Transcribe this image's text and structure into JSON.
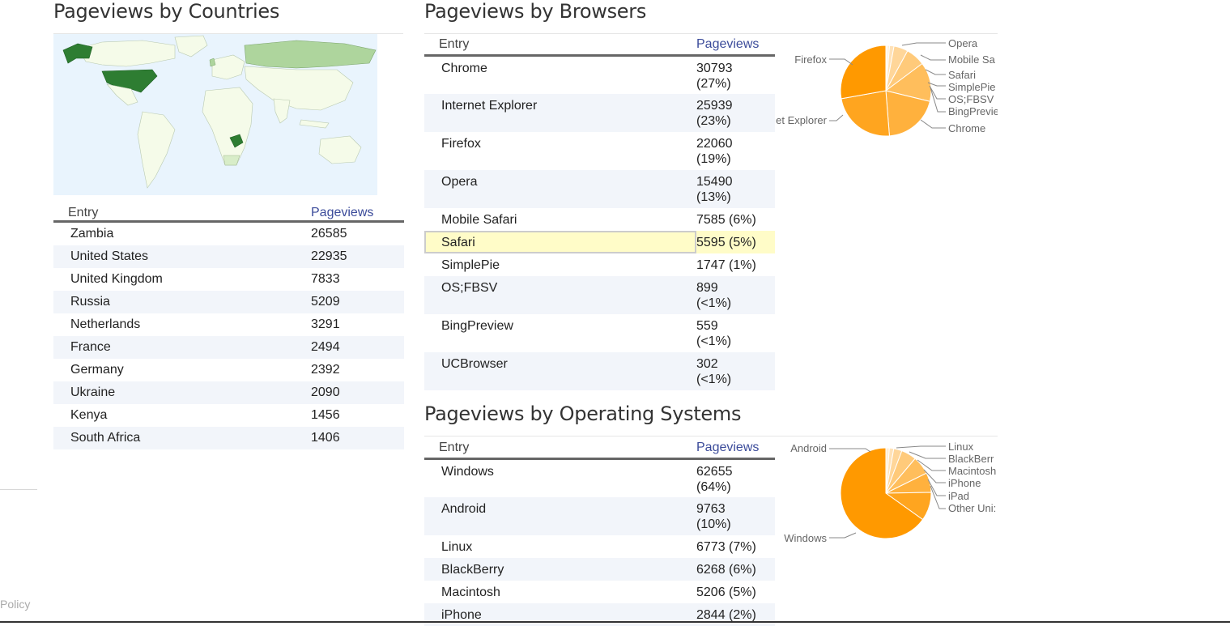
{
  "countries": {
    "title": "Pageviews by Countries",
    "col_entry": "Entry",
    "col_pageviews": "Pageviews",
    "rows": [
      {
        "entry": "Zambia",
        "pageviews": "26585"
      },
      {
        "entry": "United States",
        "pageviews": "22935"
      },
      {
        "entry": "United Kingdom",
        "pageviews": "7833"
      },
      {
        "entry": "Russia",
        "pageviews": "5209"
      },
      {
        "entry": "Netherlands",
        "pageviews": "3291"
      },
      {
        "entry": "France",
        "pageviews": "2494"
      },
      {
        "entry": "Germany",
        "pageviews": "2392"
      },
      {
        "entry": "Ukraine",
        "pageviews": "2090"
      },
      {
        "entry": "Kenya",
        "pageviews": "1456"
      },
      {
        "entry": "South Africa",
        "pageviews": "1406"
      }
    ],
    "map_colors": {
      "ocean": "#e9f4fd",
      "land": "#f5fbe9",
      "high": "#2e7d32",
      "mid": "#aed59d",
      "low": "#d8edc8"
    }
  },
  "browsers": {
    "title": "Pageviews by Browsers",
    "col_entry": "Entry",
    "col_pageviews": "Pageviews",
    "rows": [
      {
        "entry": "Chrome",
        "pv1": "30793",
        "pv2": "(27%)"
      },
      {
        "entry": "Internet Explorer",
        "pv1": "25939",
        "pv2": "(23%)"
      },
      {
        "entry": "Firefox",
        "pv1": "22060",
        "pv2": "(19%)"
      },
      {
        "entry": "Opera",
        "pv1": "15490",
        "pv2": "(13%)"
      },
      {
        "entry": "Mobile Safari",
        "pv1": "7585 (6%)",
        "pv2": ""
      },
      {
        "entry": "Safari",
        "pv1": "5595 (5%)",
        "pv2": "",
        "highlight": true
      },
      {
        "entry": "SimplePie",
        "pv1": "1747 (1%)",
        "pv2": ""
      },
      {
        "entry": "OS;FBSV",
        "pv1": "899",
        "pv2": "(<1%)"
      },
      {
        "entry": "BingPreview",
        "pv1": "559",
        "pv2": "(<1%)"
      },
      {
        "entry": "UCBrowser",
        "pv1": "302",
        "pv2": "(<1%)"
      }
    ]
  },
  "os": {
    "title": "Pageviews by Operating Systems",
    "col_entry": "Entry",
    "col_pageviews": "Pageviews",
    "rows": [
      {
        "entry": "Windows",
        "pv1": "62655",
        "pv2": "(64%)"
      },
      {
        "entry": "Android",
        "pv1": "9763",
        "pv2": "(10%)"
      },
      {
        "entry": "Linux",
        "pv1": "6773 (7%)",
        "pv2": ""
      },
      {
        "entry": "BlackBerry",
        "pv1": "6268 (6%)",
        "pv2": ""
      },
      {
        "entry": "Macintosh",
        "pv1": "5206 (5%)",
        "pv2": ""
      },
      {
        "entry": "iPhone",
        "pv1": "2844 (2%)",
        "pv2": ""
      }
    ]
  },
  "chart_data": [
    {
      "type": "pie",
      "title": "",
      "labels": [
        "Chrome",
        "Internet Explorer",
        "Firefox",
        "Opera",
        "Mobile Safari",
        "Safari",
        "SimplePie",
        "OS;FBSV",
        "BingPreview"
      ],
      "values": [
        30793,
        25939,
        22060,
        15490,
        7585,
        5595,
        1747,
        899,
        559
      ],
      "visible_labels": {
        "Opera": "Opera",
        "Mobile Safari": "Mobile Sa",
        "Safari": "Safari",
        "SimplePie": "SimplePie",
        "OS;FBSV": "OS;FBSV",
        "BingPreview": "BingPrevie",
        "Firefox": "Firefox",
        "Internet Explorer": "et Explorer",
        "Chrome": "Chrome"
      }
    },
    {
      "type": "pie",
      "title": "",
      "labels": [
        "Windows",
        "Android",
        "Linux",
        "BlackBerry",
        "Macintosh",
        "iPhone",
        "iPad",
        "Other Unix"
      ],
      "values": [
        62655,
        9763,
        6773,
        6268,
        5206,
        2844,
        1500,
        1200
      ],
      "visible_labels": {
        "Android": "Android",
        "Linux": "Linux",
        "BlackBerry": "BlackBerr",
        "Macintosh": "Macintosh",
        "iPhone": "iPhone",
        "iPad": "iPad",
        "Other Unix": "Other Uni:",
        "Windows": "Windows"
      }
    }
  ],
  "colors": {
    "pie_main": "#ff9900",
    "highlight_bg": "#fffcc8",
    "highlight_border": "#cccccc",
    "row_alt": "#f2f5fa"
  },
  "footer": {
    "link": "Policy"
  }
}
